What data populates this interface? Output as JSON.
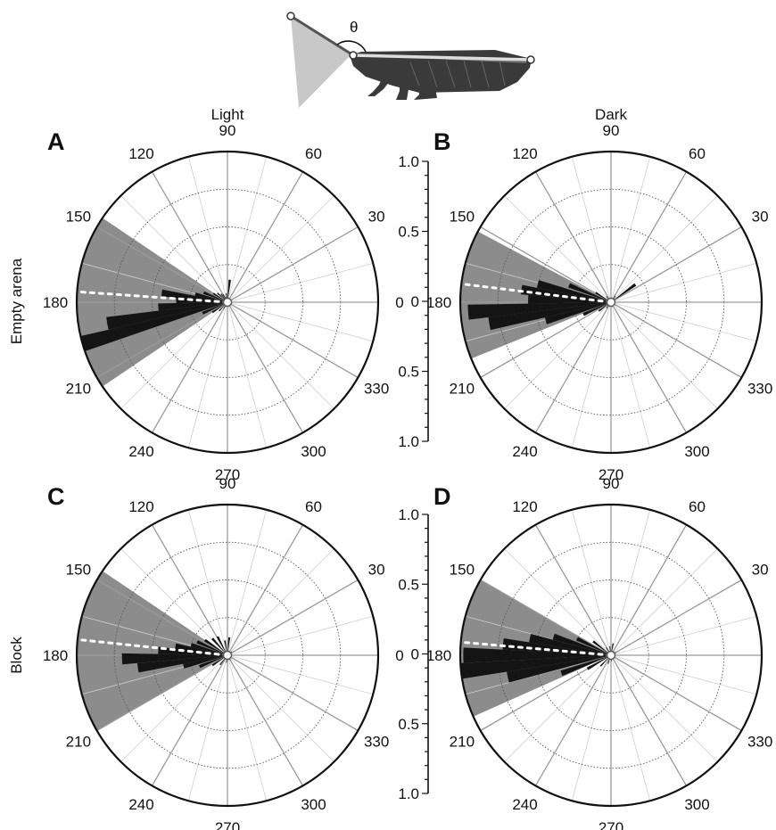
{
  "column_titles": {
    "left": "Light",
    "right": "Dark"
  },
  "row_titles": {
    "top": "Empty arena",
    "bottom": "Block"
  },
  "schematic": {
    "angle_symbol": "θ"
  },
  "scale": {
    "labels": [
      "1.0",
      "0.5",
      "0",
      "0.5",
      "1.0"
    ]
  },
  "angle_ticks": [
    "90",
    "60",
    "30",
    "0",
    "330",
    "300",
    "270",
    "240",
    "210",
    "180",
    "150",
    "120"
  ],
  "colors": {
    "sector": "#8c8c8c",
    "bars": "#141414",
    "rose_bar": "#141414",
    "mean_line": "#ffffff",
    "grid_major": "#9a9a9a",
    "grid_minor": "#cfcfcf",
    "circle": "#111111"
  },
  "chart_data": [
    {
      "panel": "A",
      "type": "polar-histogram",
      "condition": "Light",
      "arena": "Empty arena",
      "rlim": [
        0,
        1.0
      ],
      "shaded_sector_deg": [
        146,
        214
      ],
      "mean_direction_deg": 176,
      "bins": [
        {
          "angle": 84,
          "r": 0.15
        },
        {
          "angle": 98,
          "r": 0.06
        },
        {
          "angle": 108,
          "r": 0.04
        },
        {
          "angle": 118,
          "r": 0.06
        },
        {
          "angle": 128,
          "r": 0.07
        },
        {
          "angle": 138,
          "r": 0.09
        },
        {
          "angle": 148,
          "r": 0.11
        },
        {
          "angle": 158,
          "r": 0.17
        },
        {
          "angle": 166,
          "r": 0.22
        },
        {
          "angle": 172,
          "r": 0.44
        },
        {
          "angle": 178,
          "r": 0.34
        },
        {
          "angle": 184,
          "r": 0.46
        },
        {
          "angle": 190,
          "r": 0.81
        },
        {
          "angle": 196,
          "r": 1.0
        },
        {
          "angle": 204,
          "r": 0.18
        },
        {
          "angle": 214,
          "r": 0.12
        },
        {
          "angle": 226,
          "r": 0.08
        },
        {
          "angle": 240,
          "r": 0.05
        },
        {
          "angle": 258,
          "r": 0.03
        },
        {
          "angle": 36,
          "r": 0.02
        }
      ]
    },
    {
      "panel": "B",
      "type": "polar-histogram",
      "condition": "Dark",
      "arena": "Empty arena",
      "rlim": [
        0,
        1.0
      ],
      "shaded_sector_deg": [
        152,
        202
      ],
      "mean_direction_deg": 173,
      "bins": [
        {
          "angle": 36,
          "r": 0.2
        },
        {
          "angle": 54,
          "r": 0.05
        },
        {
          "angle": 98,
          "r": 0.03
        },
        {
          "angle": 128,
          "r": 0.05
        },
        {
          "angle": 148,
          "r": 0.12
        },
        {
          "angle": 158,
          "r": 0.3
        },
        {
          "angle": 166,
          "r": 0.5
        },
        {
          "angle": 172,
          "r": 0.6
        },
        {
          "angle": 178,
          "r": 0.55
        },
        {
          "angle": 184,
          "r": 0.95
        },
        {
          "angle": 190,
          "r": 0.82
        },
        {
          "angle": 196,
          "r": 0.45
        },
        {
          "angle": 204,
          "r": 0.2
        },
        {
          "angle": 216,
          "r": 0.1
        },
        {
          "angle": 232,
          "r": 0.05
        },
        {
          "angle": 262,
          "r": 0.03
        }
      ]
    },
    {
      "panel": "C",
      "type": "polar-histogram",
      "condition": "Light",
      "arena": "Block",
      "rlim": [
        0,
        1.0
      ],
      "shaded_sector_deg": [
        146,
        210
      ],
      "mean_direction_deg": 174,
      "bins": [
        {
          "angle": 84,
          "r": 0.12
        },
        {
          "angle": 100,
          "r": 0.1
        },
        {
          "angle": 118,
          "r": 0.14
        },
        {
          "angle": 132,
          "r": 0.15
        },
        {
          "angle": 146,
          "r": 0.18
        },
        {
          "angle": 156,
          "r": 0.22
        },
        {
          "angle": 164,
          "r": 0.25
        },
        {
          "angle": 170,
          "r": 0.35
        },
        {
          "angle": 176,
          "r": 0.46
        },
        {
          "angle": 182,
          "r": 0.7
        },
        {
          "angle": 188,
          "r": 0.6
        },
        {
          "angle": 194,
          "r": 0.3
        },
        {
          "angle": 202,
          "r": 0.2
        },
        {
          "angle": 214,
          "r": 0.12
        },
        {
          "angle": 232,
          "r": 0.08
        },
        {
          "angle": 262,
          "r": 0.05
        },
        {
          "angle": 300,
          "r": 0.04
        },
        {
          "angle": 40,
          "r": 0.04
        }
      ]
    },
    {
      "panel": "D",
      "type": "polar-histogram",
      "condition": "Dark",
      "arena": "Block",
      "rlim": [
        0,
        1.0
      ],
      "shaded_sector_deg": [
        150,
        204
      ],
      "mean_direction_deg": 175,
      "bins": [
        {
          "angle": 80,
          "r": 0.08
        },
        {
          "angle": 98,
          "r": 0.06
        },
        {
          "angle": 122,
          "r": 0.06
        },
        {
          "angle": 142,
          "r": 0.15
        },
        {
          "angle": 154,
          "r": 0.25
        },
        {
          "angle": 162,
          "r": 0.4
        },
        {
          "angle": 168,
          "r": 0.55
        },
        {
          "angle": 174,
          "r": 0.72
        },
        {
          "angle": 180,
          "r": 0.98
        },
        {
          "angle": 186,
          "r": 1.0
        },
        {
          "angle": 192,
          "r": 0.7
        },
        {
          "angle": 200,
          "r": 0.35
        },
        {
          "angle": 210,
          "r": 0.18
        },
        {
          "angle": 226,
          "r": 0.1
        },
        {
          "angle": 250,
          "r": 0.06
        },
        {
          "angle": 274,
          "r": 0.04
        },
        {
          "angle": 30,
          "r": 0.04
        }
      ]
    }
  ]
}
